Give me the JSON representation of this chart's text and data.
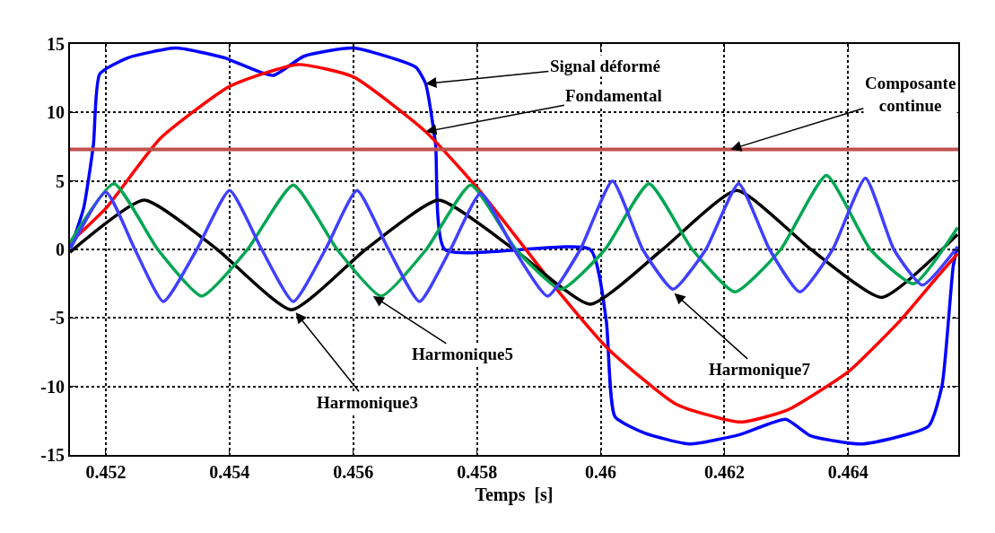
{
  "chart_data": {
    "type": "line",
    "xlabel": "Temps  [s]",
    "xlim": [
      0.45142,
      0.46578
    ],
    "xticks": [
      0.452,
      0.454,
      0.456,
      0.458,
      0.46,
      0.462,
      0.464
    ],
    "ylim": [
      -15,
      15
    ],
    "yticks": [
      -15,
      -10,
      -5,
      0,
      5,
      10,
      15
    ],
    "grid": true,
    "line_style": "solid",
    "marker": "none",
    "series": [
      {
        "color": "#0000ff",
        "x": [
          0.45142,
          0.45164,
          0.4518,
          0.4519,
          0.45236,
          0.45313,
          0.45391,
          0.4547,
          0.4552,
          0.456,
          0.45701,
          0.45717,
          0.45733,
          0.45748,
          0.45983,
          0.46009,
          0.46023,
          0.46071,
          0.46143,
          0.46226,
          0.46299,
          0.46339,
          0.46422,
          0.4653,
          0.46552,
          0.4657,
          0.46577
        ],
        "values": [
          0,
          3.0,
          7.7,
          12.8,
          14.0,
          14.7,
          14.0,
          12.7,
          14.1,
          14.7,
          13.3,
          12.1,
          7.7,
          0,
          0,
          -5.2,
          -12.2,
          -13.4,
          -14.2,
          -13.5,
          -12.4,
          -13.6,
          -14.2,
          -12.9,
          -9.9,
          -1.2,
          0.2
        ]
      },
      {
        "color": "#ff0000",
        "x": [
          0.45142,
          0.452,
          0.45288,
          0.454,
          0.4551,
          0.456,
          0.45717,
          0.45806,
          0.45936,
          0.46013,
          0.46122,
          0.46226,
          0.46303,
          0.46401,
          0.46484,
          0.46546,
          0.46577
        ],
        "values": [
          0.5,
          3.0,
          8.1,
          11.9,
          13.5,
          12.6,
          8.6,
          4.2,
          -3.3,
          -7.3,
          -11.3,
          -12.6,
          -11.7,
          -8.9,
          -5.2,
          -1.9,
          -0.3
        ]
      },
      {
        "color": "#000000",
        "x": [
          0.45142,
          0.45262,
          0.4538,
          0.455,
          0.4562,
          0.45738,
          0.4586,
          0.45983,
          0.461,
          0.4622,
          0.4634,
          0.46454,
          0.46577
        ],
        "values": [
          -0.2,
          3.6,
          0,
          -4.4,
          0,
          3.6,
          0,
          -4.0,
          0,
          4.3,
          0,
          -3.5,
          1.1
        ]
      },
      {
        "color": "#00a651",
        "x": [
          0.45142,
          0.45213,
          0.45284,
          0.45355,
          0.45429,
          0.45503,
          0.45574,
          0.45645,
          0.45718,
          0.4579,
          0.45863,
          0.45936,
          0.46007,
          0.46078,
          0.46148,
          0.46217,
          0.46291,
          0.46365,
          0.46436,
          0.46506,
          0.46577
        ],
        "values": [
          0.5,
          4.8,
          0,
          -3.4,
          0,
          4.7,
          0,
          -3.4,
          0,
          4.7,
          0,
          -2.9,
          0,
          4.8,
          0,
          -3.1,
          0,
          5.4,
          0,
          -2.5,
          1.6
        ]
      },
      {
        "color": "#3f3fff",
        "x": [
          0.45142,
          0.452,
          0.45247,
          0.45293,
          0.45347,
          0.454,
          0.45452,
          0.45503,
          0.45555,
          0.45606,
          0.45657,
          0.45707,
          0.45757,
          0.45806,
          0.4586,
          0.45914,
          0.45967,
          0.46019,
          0.46068,
          0.46117,
          0.4617,
          0.46223,
          0.46273,
          0.46322,
          0.46375,
          0.46428,
          0.46474,
          0.4652,
          0.46577
        ],
        "values": [
          0,
          4.2,
          0,
          -3.8,
          0,
          4.3,
          0,
          -3.8,
          0,
          4.3,
          0,
          -3.8,
          0,
          4.1,
          0,
          -3.4,
          0,
          5.0,
          0,
          -2.9,
          0,
          4.8,
          0,
          -3.1,
          0,
          5.2,
          0,
          -2.6,
          0.2
        ]
      }
    ],
    "ref_lines": [
      {
        "axis": "y",
        "value": 7.3,
        "color": "#c0504d",
        "line_style": "solid"
      }
    ],
    "annotations": [
      {
        "text": "Signal déformé",
        "x": 0.45717,
        "y": 12.1
      },
      {
        "text": "Fondamental",
        "x": 0.45717,
        "y": 8.6
      },
      {
        "text": "Composante\ncontinue",
        "x": 0.4621,
        "y": 7.3
      },
      {
        "text": "Harmonique5",
        "x": 0.45632,
        "y": -3.4
      },
      {
        "text": "Harmonique3",
        "x": 0.45507,
        "y": -4.6
      },
      {
        "text": "Harmonique7",
        "x": 0.46119,
        "y": -3.2
      }
    ]
  }
}
